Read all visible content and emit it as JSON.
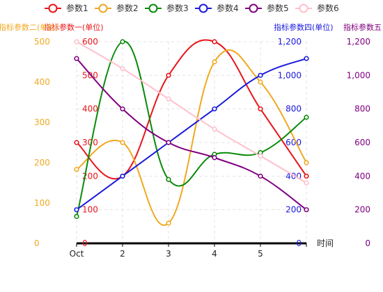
{
  "chart_data": {
    "type": "line",
    "categories": [
      "Oct",
      "2",
      "3",
      "4",
      "5",
      ""
    ],
    "xlabel": "时间",
    "grid": true,
    "legend_position": "top-center",
    "axes": [
      {
        "id": "ax1",
        "label": "指标参数一(单位)",
        "side": "left",
        "color": "#e8151a",
        "ylim": [
          0,
          600
        ],
        "ticks": [
          0,
          100,
          200,
          300,
          400,
          500,
          600
        ]
      },
      {
        "id": "ax2",
        "label": "指标参数二(单位)",
        "side": "left",
        "color": "#f0a820",
        "ylim": [
          0,
          500
        ],
        "ticks": [
          0,
          100,
          200,
          300,
          400,
          500
        ]
      },
      {
        "id": "ax4",
        "label": "指标参数四(单位)",
        "side": "right",
        "color": "#1a1adc",
        "ylim": [
          0,
          1200
        ],
        "ticks": [
          0,
          200,
          400,
          600,
          800,
          1000,
          1200
        ]
      },
      {
        "id": "ax5",
        "label": "指标参数五",
        "side": "right",
        "color": "#800080",
        "ylim": [
          0,
          1200
        ],
        "ticks": [
          0,
          200,
          400,
          600,
          800,
          1000,
          1200
        ]
      }
    ],
    "series": [
      {
        "name": "参数1",
        "axis": "ax1",
        "color": "#e8151a",
        "values": [
          300,
          200,
          500,
          600,
          400,
          200
        ]
      },
      {
        "name": "参数2",
        "axis": "ax1",
        "color": "#f0a820",
        "values": [
          220,
          300,
          60,
          540,
          480,
          240
        ]
      },
      {
        "name": "参数3",
        "axis": "ax1",
        "color": "#0a8a0a",
        "values": [
          80,
          600,
          190,
          265,
          270,
          375
        ]
      },
      {
        "name": "参数4",
        "axis": "ax4",
        "color": "#1a1adc",
        "values": [
          200,
          400,
          600,
          800,
          1000,
          1100
        ]
      },
      {
        "name": "参数5",
        "axis": "ax4",
        "color": "#800080",
        "values": [
          1100,
          800,
          600,
          510,
          400,
          200
        ]
      },
      {
        "name": "参数6",
        "axis": "ax1",
        "color": "#ffc0cb",
        "values": [
          600,
          520,
          430,
          340,
          260,
          180
        ]
      }
    ]
  }
}
